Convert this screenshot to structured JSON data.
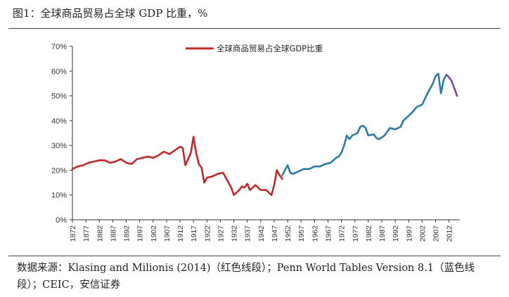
{
  "title": "图1：全球商品贸易占全球 GDP 比重，%",
  "source": "数据来源：Klasing and Milionis (2014)（红色线段）；Penn World Tables Version 8.1（蓝色线段）；CEIC，安信证券",
  "chart_data": {
    "type": "line",
    "title": "图1：全球商品贸易占全球 GDP 比重，%",
    "xlabel": "",
    "ylabel": "",
    "ylim": [
      0,
      70
    ],
    "yticks": [
      "0%",
      "10%",
      "20%",
      "30%",
      "40%",
      "50%",
      "60%",
      "70%"
    ],
    "xlim": [
      1872,
      2016
    ],
    "xticks": [
      "1872",
      "1877",
      "1882",
      "1887",
      "1892",
      "1897",
      "1902",
      "1907",
      "1912",
      "1917",
      "1922",
      "1927",
      "1932",
      "1937",
      "1942",
      "1947",
      "1952",
      "1957",
      "1962",
      "1967",
      "1972",
      "1977",
      "1982",
      "1987",
      "1992",
      "1997",
      "2002",
      "2007",
      "2012"
    ],
    "legend": {
      "position": "top-center",
      "entries": [
        "全球商品贸易占全球GDP比重"
      ]
    },
    "grid": false,
    "colors": {
      "red": "#c0282a",
      "blue": "#2a7ba5",
      "purple": "#7b4a9b"
    },
    "series": [
      {
        "name": "全球商品贸易占全球GDP比重",
        "color": "#c0282a",
        "x": [
          1872,
          1874,
          1876,
          1878,
          1880,
          1882,
          1884,
          1886,
          1888,
          1890,
          1892,
          1894,
          1896,
          1898,
          1900,
          1902,
          1904,
          1906,
          1907,
          1908,
          1910,
          1912,
          1913,
          1914,
          1916,
          1917,
          1918,
          1919,
          1920,
          1921,
          1922,
          1924,
          1926,
          1928,
          1930,
          1931,
          1932,
          1933,
          1934,
          1935,
          1936,
          1937,
          1938,
          1939,
          1940,
          1941,
          1942,
          1944,
          1946,
          1947,
          1948,
          1949,
          1950
        ],
        "y": [
          20.5,
          21.5,
          22,
          23,
          23.5,
          24,
          24,
          23,
          23.5,
          24.5,
          23,
          22.5,
          24.5,
          25,
          25.5,
          25,
          26,
          27.5,
          27,
          26.5,
          28,
          29.5,
          29,
          22,
          27,
          33.5,
          27,
          22.5,
          21,
          15,
          17,
          17.5,
          18.5,
          19,
          15,
          13,
          10,
          11,
          12,
          13.5,
          13,
          14.5,
          12,
          13,
          14,
          13,
          12,
          12,
          10,
          14,
          20,
          18,
          16.5
        ]
      },
      {
        "name": "",
        "color": "#2a7ba5",
        "x": [
          1950,
          1952,
          1953,
          1954,
          1956,
          1958,
          1960,
          1962,
          1964,
          1966,
          1968,
          1970,
          1971,
          1972,
          1973,
          1974,
          1975,
          1976,
          1978,
          1979,
          1980,
          1981,
          1982,
          1984,
          1985,
          1986,
          1988,
          1990,
          1992,
          1994,
          1995,
          1996,
          1998,
          2000,
          2001,
          2002,
          2004,
          2006,
          2007,
          2008,
          2009,
          2010,
          2011
        ],
        "y": [
          18,
          22,
          19,
          18.5,
          19.5,
          20.5,
          20.5,
          21.5,
          21.5,
          22.5,
          23,
          25,
          25.5,
          27,
          30,
          34,
          32.5,
          34,
          35,
          37.5,
          38,
          37,
          34,
          34.5,
          33,
          32.5,
          34,
          37,
          36.5,
          37.5,
          40,
          41,
          43,
          45.5,
          46,
          46.5,
          51,
          55,
          58,
          59,
          51,
          56.5,
          58.5
        ]
      },
      {
        "name": "",
        "color": "#7b4a9b",
        "x": [
          2011,
          2012,
          2013,
          2014,
          2015
        ],
        "y": [
          58.5,
          57.5,
          56,
          53,
          50
        ]
      }
    ]
  }
}
